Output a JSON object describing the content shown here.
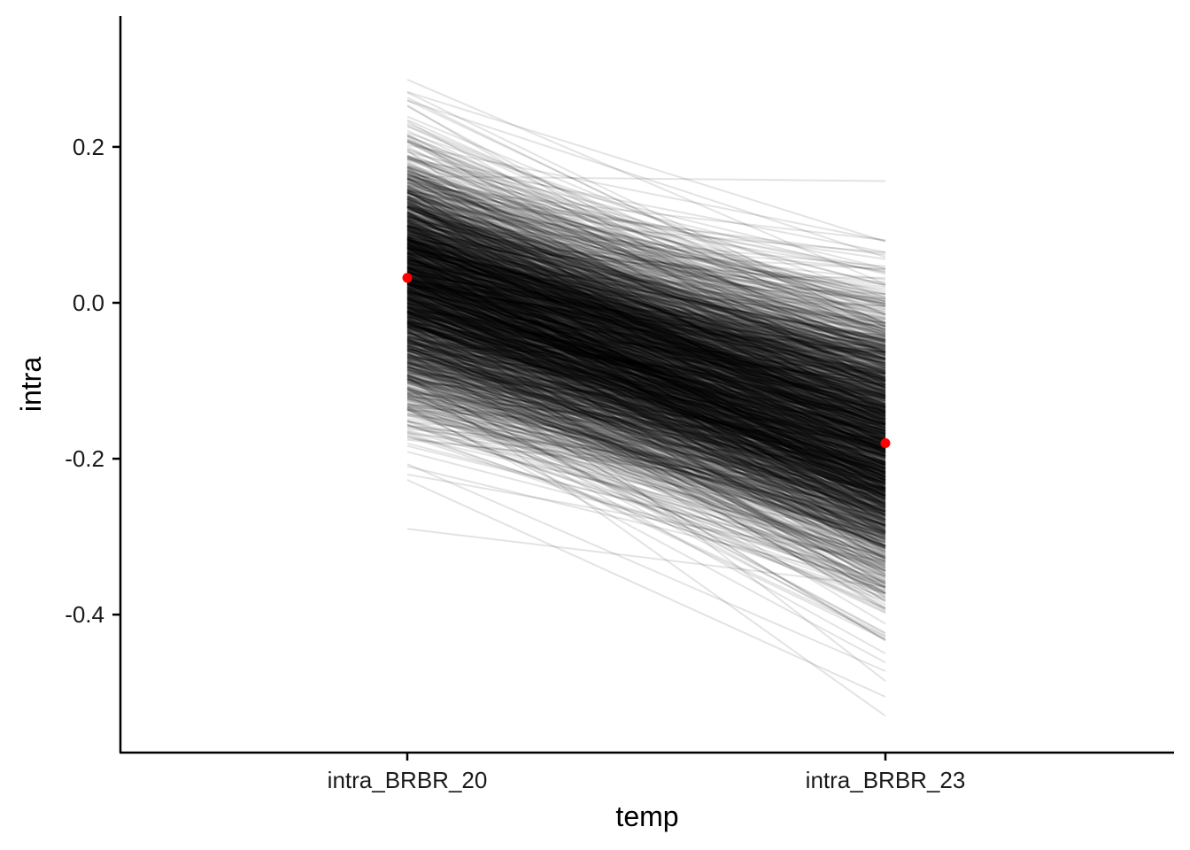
{
  "chart_data": {
    "type": "line",
    "title": "",
    "xlabel": "temp",
    "ylabel": "intra",
    "categories": [
      "intra_BRBR_20",
      "intra_BRBR_23"
    ],
    "y_ticks": [
      {
        "value": 0.2,
        "label": "0.2"
      },
      {
        "value": 0.0,
        "label": "0.0"
      },
      {
        "value": -0.2,
        "label": "-0.2"
      },
      {
        "value": -0.4,
        "label": "-0.4"
      }
    ],
    "ylim": [
      -0.577,
      0.368
    ],
    "grid": false,
    "legend": "none",
    "line_color": "#000000",
    "highlight_color": "#ff0000",
    "simulated_lines": {
      "count": 2000,
      "start_mean": 0.03,
      "start_sd": 0.08,
      "end_mean": -0.18,
      "end_sd": 0.09,
      "start_range": [
        -0.29,
        0.32
      ],
      "end_range": [
        -0.53,
        0.16
      ]
    },
    "highlight_points": [
      {
        "category": "intra_BRBR_20",
        "value": 0.032
      },
      {
        "category": "intra_BRBR_23",
        "value": -0.18
      }
    ]
  }
}
